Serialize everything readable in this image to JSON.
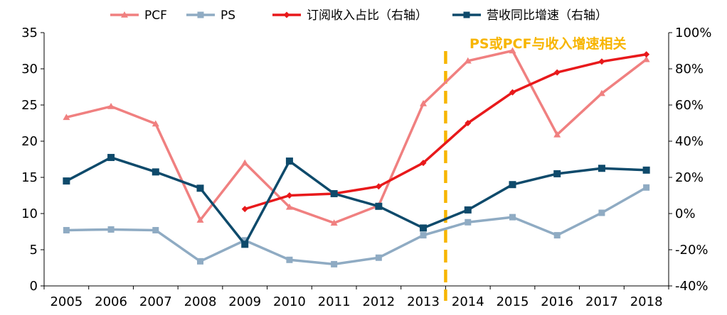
{
  "chart_data": {
    "type": "line",
    "x": [
      "2005",
      "2006",
      "2007",
      "2008",
      "2009",
      "2010",
      "2011",
      "2012",
      "2013",
      "2014",
      "2015",
      "2016",
      "2017",
      "2018"
    ],
    "y_left": {
      "ylim": [
        0,
        35
      ],
      "ticks": [
        0,
        5,
        10,
        15,
        20,
        25,
        30,
        35
      ]
    },
    "y_right": {
      "ylim": [
        -40,
        100
      ],
      "ticks": [
        "-40%",
        "-20%",
        "0%",
        "20%",
        "40%",
        "60%",
        "80%",
        "100%"
      ],
      "unit": "%"
    },
    "series": [
      {
        "name": "PCF",
        "axis": "left",
        "color": "#f08080",
        "marker": "triangle",
        "values": [
          23.3,
          24.8,
          22.4,
          9.1,
          17.0,
          10.9,
          8.7,
          11.1,
          25.2,
          31.1,
          32.5,
          20.9,
          26.6,
          31.3
        ]
      },
      {
        "name": "PS",
        "axis": "left",
        "color": "#8fabc3",
        "marker": "square",
        "values": [
          7.7,
          7.8,
          7.7,
          3.4,
          6.3,
          3.6,
          3.0,
          3.9,
          7.0,
          8.8,
          9.5,
          7.0,
          10.1,
          13.6
        ]
      },
      {
        "name": "订阅收入占比（右轴）",
        "axis": "right",
        "color": "#e8191b",
        "marker": "diamond",
        "values": [
          null,
          null,
          null,
          null,
          2.5,
          10.0,
          11.0,
          15.0,
          28.0,
          50.0,
          67.0,
          78.0,
          84.0,
          88.0
        ]
      },
      {
        "name": "营收同比增速（右轴）",
        "axis": "right",
        "color": "#0e4a6b",
        "marker": "square",
        "values": [
          18.0,
          31.0,
          23.0,
          14.0,
          -17.0,
          29.0,
          11.0,
          4.0,
          -8.0,
          2.0,
          16.0,
          22.0,
          25.0,
          24.0
        ]
      }
    ],
    "legend": "top",
    "annotation": {
      "text": "PS或PCF与收入增速相关",
      "divider_between": [
        "2013",
        "2014"
      ],
      "color": "#f7b500"
    },
    "grid": false
  }
}
